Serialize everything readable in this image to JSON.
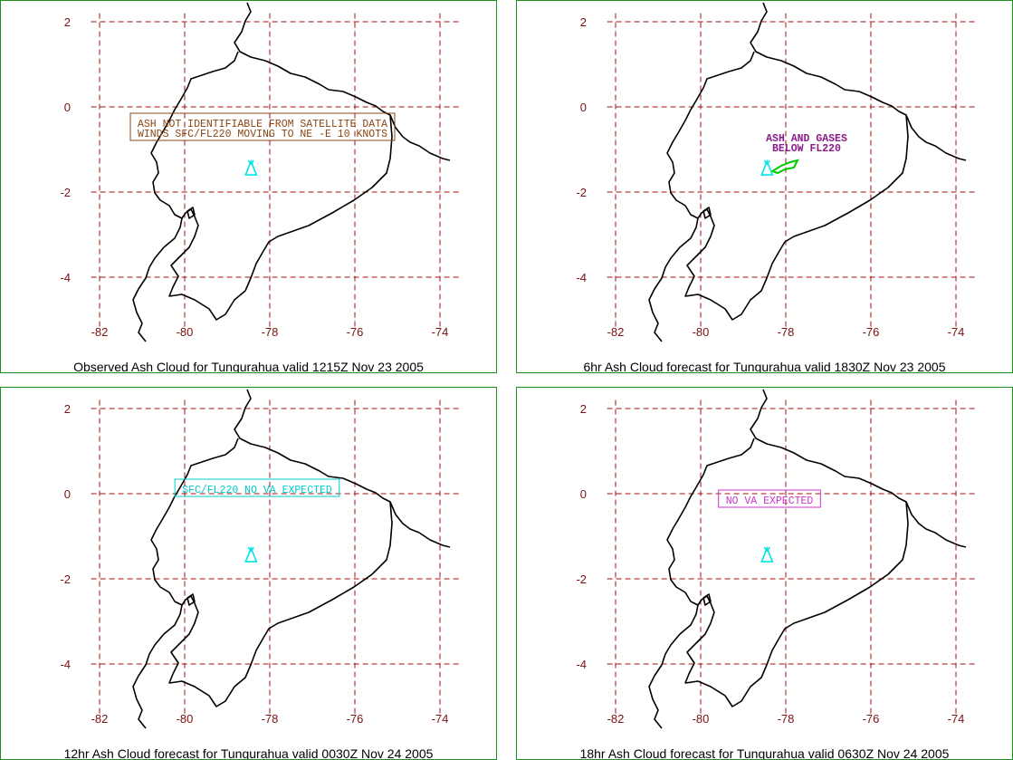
{
  "panels": [
    {
      "caption": "Observed Ash Cloud for Tungurahua valid 1215Z Nov 23 2005",
      "annotation_lines": [
        "ASH NOT IDENTIFIABLE FROM SATELLITE DATA",
        "WINDS SFC/FL220 MOVING TO NE -E 10 KNOTS"
      ],
      "annotation_color": "#8b4513",
      "annotation_style": "boxed"
    },
    {
      "caption": "6hr Ash Cloud forecast for Tungurahua valid 1830Z Nov 23 2005",
      "annotation_lines": [
        "ASH AND GASES",
        "BELOW FL220"
      ],
      "annotation_color": "#8b1a8b",
      "annotation_style": "plain",
      "ash_area_color": "#00cc00"
    },
    {
      "caption": "12hr Ash Cloud forecast for Tungurahua valid 0030Z Nov 24 2005",
      "annotation_lines": [
        "SFC/FL220 NO VA EXPECTED"
      ],
      "annotation_color": "#00cccc",
      "annotation_style": "boxed"
    },
    {
      "caption": "18hr Ash Cloud forecast for Tungurahua valid 0630Z Nov 24 2005",
      "annotation_lines": [
        "NO VA EXPECTED"
      ],
      "annotation_color": "#cc33cc",
      "annotation_style": "boxed"
    }
  ],
  "x_ticks": [
    "-82",
    "-80",
    "-78",
    "-76",
    "-74"
  ],
  "y_ticks": [
    "2",
    "0",
    "-2",
    "-4"
  ],
  "volcano": {
    "name": "Tungurahua",
    "lon": -78.44,
    "lat": -1.47,
    "color": "#00e5e5",
    "icon": "volcano-triangle-icon"
  },
  "colors": {
    "panel_border": "#1f8f1f",
    "grid": "#a01010",
    "tick_label": "#7a1010",
    "coastline": "#000000"
  }
}
